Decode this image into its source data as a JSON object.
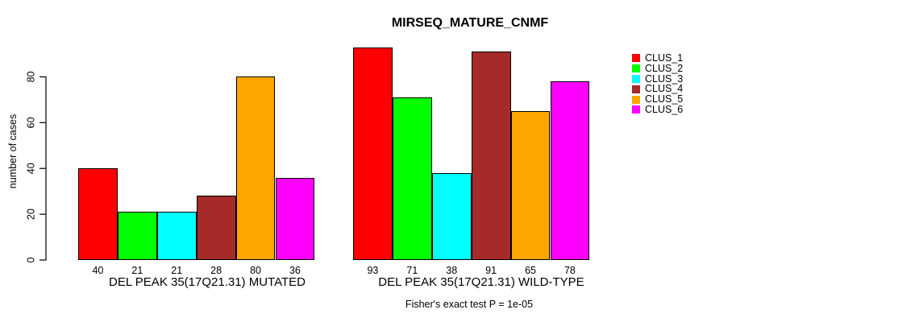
{
  "chart_data": {
    "type": "bar",
    "title": "MIRSEQ_MATURE_CNMF",
    "ylabel": "number of cases",
    "xlabel": "",
    "yticks": [
      0,
      20,
      40,
      60,
      80
    ],
    "ylim": [
      0,
      93
    ],
    "grid": false,
    "legend_position": "right-outside",
    "values_shown_below_bars": true,
    "categories": [
      "DEL PEAK 35(17Q21.31) MUTATED",
      "DEL PEAK 35(17Q21.31) WILD-TYPE"
    ],
    "series": [
      {
        "name": "CLUS_1",
        "color": "#FF0000",
        "values": [
          40,
          93
        ]
      },
      {
        "name": "CLUS_2",
        "color": "#00FF00",
        "values": [
          21,
          71
        ]
      },
      {
        "name": "CLUS_3",
        "color": "#00FFFF",
        "values": [
          21,
          38
        ]
      },
      {
        "name": "CLUS_4",
        "color": "#A52A2A",
        "values": [
          28,
          91
        ]
      },
      {
        "name": "CLUS_5",
        "color": "#FFA500",
        "values": [
          80,
          65
        ]
      },
      {
        "name": "CLUS_6",
        "color": "#FF00FF",
        "values": [
          36,
          78
        ]
      }
    ],
    "footnote": "Fisher's exact test P = 1e-05"
  },
  "colors": {
    "axis": "#000000",
    "bar_border": "#000000",
    "background": "#FFFFFF"
  }
}
